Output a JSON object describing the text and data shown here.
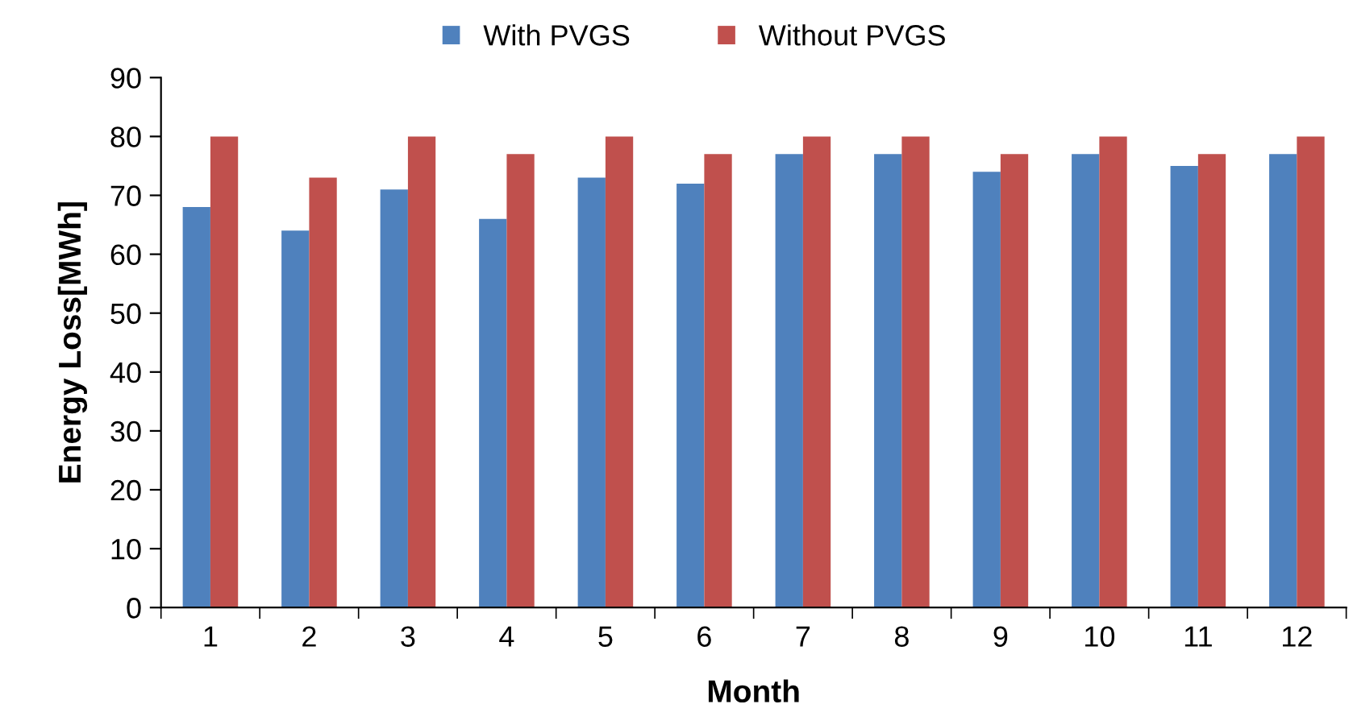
{
  "chart_data": {
    "type": "bar",
    "xlabel": "Month",
    "ylabel": "Energy Loss[MWh]",
    "categories": [
      "1",
      "2",
      "3",
      "4",
      "5",
      "6",
      "7",
      "8",
      "9",
      "10",
      "11",
      "12"
    ],
    "series": [
      {
        "name": "With PVGS",
        "color": "#4f81bd",
        "values": [
          68,
          64,
          71,
          66,
          73,
          72,
          77,
          77,
          74,
          77,
          75,
          77
        ]
      },
      {
        "name": "Without PVGS",
        "color": "#c0504d",
        "values": [
          80,
          73,
          80,
          77,
          80,
          77,
          80,
          80,
          77,
          80,
          77,
          80
        ]
      }
    ],
    "ylim": [
      0,
      90
    ],
    "yticks": [
      0,
      10,
      20,
      30,
      40,
      50,
      60,
      70,
      80,
      90
    ],
    "grid": false,
    "legend": "top"
  }
}
